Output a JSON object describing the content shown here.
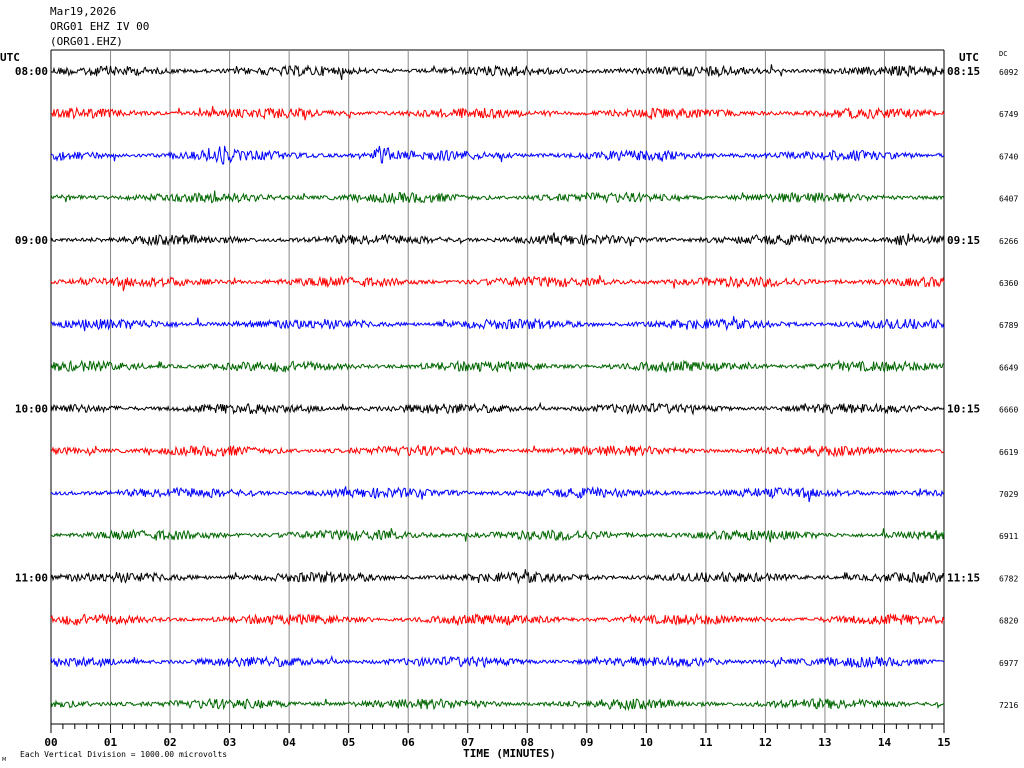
{
  "header": {
    "date": "Mar19,2026",
    "station": "ORG01 EHZ IV 00",
    "channel": "(ORG01.EHZ)"
  },
  "labels": {
    "utc_left": "UTC",
    "utc_right": "UTC",
    "dc": "DC",
    "xlabel": "TIME (MINUTES)",
    "footer_mark": "M",
    "scale_note": "Each Vertical Division = 1000.00 microvolts"
  },
  "colors": {
    "trace_cycle": [
      "#000000",
      "#ff0000",
      "#0000ff",
      "#006600"
    ],
    "gridline": "#888888"
  },
  "chart_data": {
    "type": "line",
    "xlabel": "TIME (MINUTES)",
    "xlim": [
      0,
      15
    ],
    "x_ticks": [
      "00",
      "01",
      "02",
      "03",
      "04",
      "05",
      "06",
      "07",
      "08",
      "09",
      "10",
      "11",
      "12",
      "13",
      "14",
      "15"
    ],
    "minor_ticks_per_minute": 5,
    "grid_vertical": true,
    "rows": [
      {
        "left": "08:00",
        "right": "08:15",
        "dc": "6092"
      },
      {
        "left": "",
        "right": "",
        "dc": "6749"
      },
      {
        "left": "",
        "right": "",
        "dc": "6740"
      },
      {
        "left": "",
        "right": "",
        "dc": "6407"
      },
      {
        "left": "09:00",
        "right": "09:15",
        "dc": "6266"
      },
      {
        "left": "",
        "right": "",
        "dc": "6360"
      },
      {
        "left": "",
        "right": "",
        "dc": "6789"
      },
      {
        "left": "",
        "right": "",
        "dc": "6649"
      },
      {
        "left": "10:00",
        "right": "10:15",
        "dc": "6660"
      },
      {
        "left": "",
        "right": "",
        "dc": "6619"
      },
      {
        "left": "",
        "right": "",
        "dc": "7029"
      },
      {
        "left": "",
        "right": "",
        "dc": "6911"
      },
      {
        "left": "11:00",
        "right": "11:15",
        "dc": "6782"
      },
      {
        "left": "",
        "right": "",
        "dc": "6820"
      },
      {
        "left": "",
        "right": "",
        "dc": "6977"
      },
      {
        "left": "",
        "right": "",
        "dc": "7216"
      }
    ],
    "events": [
      {
        "row": 2,
        "minute": 5.55,
        "amplitude": 2.6
      },
      {
        "row": 4,
        "minute": 14.3,
        "amplitude": 2.8
      },
      {
        "row": 2,
        "minute": 2.8,
        "amplitude": 1.4
      }
    ]
  }
}
